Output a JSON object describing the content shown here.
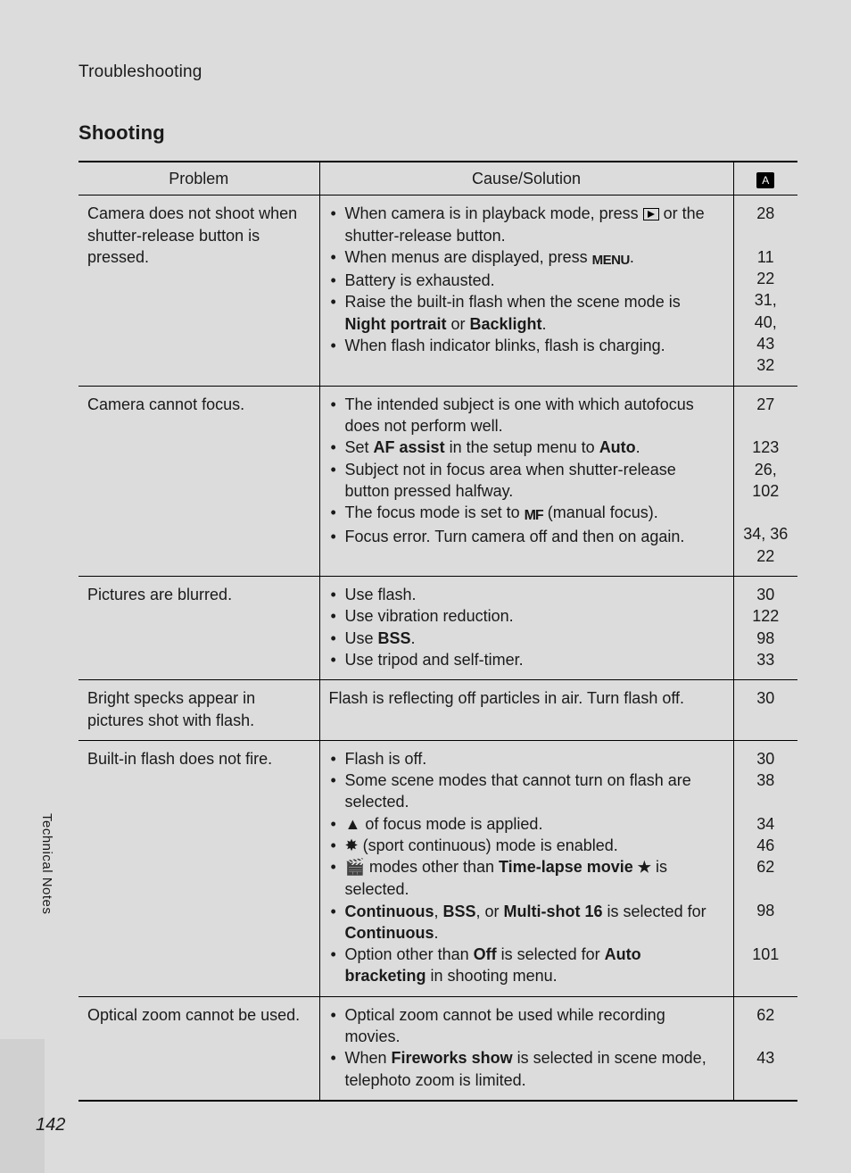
{
  "breadcrumb": "Troubleshooting",
  "sectionHeading": "Shooting",
  "sideLabel": "Technical Notes",
  "pageNumber": "142",
  "headers": {
    "problem": "Problem",
    "cause": "Cause/Solution",
    "refIcon": "⧉"
  },
  "rows": [
    {
      "problem": "Camera does not shoot when shutter-release button is pressed.",
      "causeHtml": "<ul class=\"bullets\"><li>When camera is in playback mode, press <span class=\"icon icon-play-box\" data-name=\"playback-icon\" data-interactable=\"false\"></span> or the shutter-release button.</li><li>When menus are displayed, press <span class=\"icon icon-menu\" data-name=\"menu-icon\" data-interactable=\"false\">MENU</span>.</li><li>Battery is exhausted.</li><li>Raise the built-in flash when the scene mode is <span class=\"bold\">Night portrait</span> or <span class=\"bold\">Backlight</span>.</li><li>When flash indicator blinks, flash is charging.</li></ul>",
      "refs": [
        "28",
        "",
        "11",
        "22",
        "31, 40,",
        "43",
        "32"
      ]
    },
    {
      "problem": "Camera cannot focus.",
      "causeHtml": "<ul class=\"bullets\"><li>The intended subject is one with which autofocus does not perform well.</li><li>Set <span class=\"bold\">AF assist</span> in the setup menu to <span class=\"bold\">Auto</span>.</li><li>Subject not in focus area when shutter-release button pressed halfway.</li><li>The focus mode is set to <span class=\"icon icon-mf\" data-name=\"manual-focus-icon\" data-interactable=\"false\">MF</span> (manual focus).</li><li>Focus error. Turn camera off and then on again.</li></ul>",
      "refs": [
        "27",
        "",
        "123",
        "26, 102",
        "",
        "34, 36",
        "22"
      ]
    },
    {
      "problem": "Pictures are blurred.",
      "causeHtml": "<ul class=\"bullets\"><li>Use flash.</li><li>Use vibration reduction.</li><li>Use <span class=\"bold\">BSS</span>.</li><li>Use tripod and self-timer.</li></ul>",
      "refs": [
        "30",
        "122",
        "98",
        "33"
      ]
    },
    {
      "problem": "Bright specks appear in pictures shot with flash.",
      "causeHtml": "Flash is reflecting off particles in air. Turn flash off.",
      "refs": [
        "30"
      ]
    },
    {
      "problem": "Built-in flash does not fire.",
      "causeHtml": "<ul class=\"bullets\"><li>Flash is off.</li><li>Some scene modes that cannot turn on flash are selected.</li><li><span data-name=\"mountain-icon\" data-interactable=\"false\">▲</span> of focus mode is applied.</li><li><span data-name=\"sport-continuous-icon\" data-interactable=\"false\">✸</span> (sport continuous) mode is enabled.</li><li><span data-name=\"movie-icon\" data-interactable=\"false\">🎬</span> modes other than <span class=\"bold\">Time-lapse movie</span> <span class=\"icon-star\" data-name=\"star-icon\" data-interactable=\"false\">★</span> is selected.</li><li><span class=\"bold\">Continuous</span>, <span class=\"bold\">BSS</span>, or <span class=\"bold\">Multi-shot 16</span> is selected for <span class=\"bold\">Continuous</span>.</li><li>Option other than <span class=\"bold\">Off</span> is selected for <span class=\"bold\">Auto bracketing</span> in shooting menu.</li></ul>",
      "refs": [
        "30",
        "38",
        "",
        "34",
        "46",
        "62",
        "",
        "98",
        "",
        "101"
      ]
    },
    {
      "problem": "Optical zoom cannot be used.",
      "causeHtml": "<ul class=\"bullets\"><li>Optical zoom cannot be used while recording movies.</li><li>When <span class=\"bold\">Fireworks show</span> is selected in scene mode, telephoto zoom is limited.</li></ul>",
      "refs": [
        "62",
        "",
        "43"
      ]
    }
  ]
}
